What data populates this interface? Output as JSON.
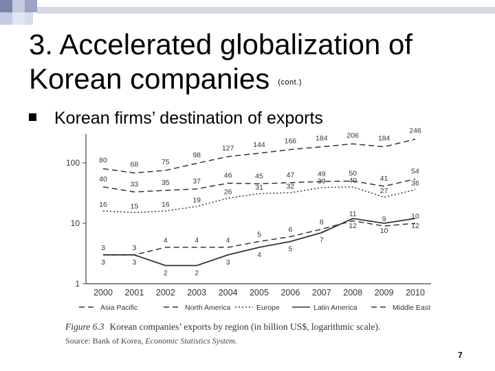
{
  "slide": {
    "title_line1": "3. Accelerated globalization of",
    "title_line2": "Korean companies",
    "title_suffix": "(cont.)",
    "bullet_text": "Korean firms’ destination of exports",
    "caption_figure": "Figure 6.3",
    "caption_text": "Korean companies’ exports by region (in billion US$, logarithmic scale).",
    "source_prefix": "Source: Bank of Korea,",
    "source_title": "Economic Statistics System.",
    "page_number": "7"
  },
  "chart_data": {
    "type": "line",
    "y_scale": "log",
    "ylim": [
      1,
      300
    ],
    "yticks": [
      1,
      10,
      100
    ],
    "ytick_labels": [
      "1",
      "10",
      "100"
    ],
    "x": [
      "2000",
      "2001",
      "2002",
      "2003",
      "2004",
      "2005",
      "2006",
      "2007",
      "2008",
      "2009",
      "2010"
    ],
    "series": [
      {
        "name": "Asia Pacific",
        "style": "dashed",
        "values": [
          80,
          68,
          75,
          98,
          127,
          144,
          166,
          184,
          206,
          184,
          246
        ]
      },
      {
        "name": "North America",
        "style": "dashed",
        "values": [
          40,
          33,
          35,
          37,
          46,
          45,
          47,
          49,
          50,
          41,
          54
        ]
      },
      {
        "name": "Europe",
        "style": "dotted",
        "values": [
          16,
          15,
          16,
          19,
          26,
          31,
          32,
          39,
          40,
          27,
          36
        ]
      },
      {
        "name": "Latin America",
        "style": "solid",
        "values": [
          3,
          3,
          2,
          2,
          3,
          4,
          5,
          7,
          12,
          10,
          12
        ]
      },
      {
        "name": "Middle East",
        "style": "dashed",
        "values": [
          3,
          3,
          4,
          4,
          4,
          5,
          6,
          8,
          11,
          9,
          10
        ]
      }
    ],
    "legend_position": "bottom",
    "grid": false,
    "line_color": "#333333"
  }
}
